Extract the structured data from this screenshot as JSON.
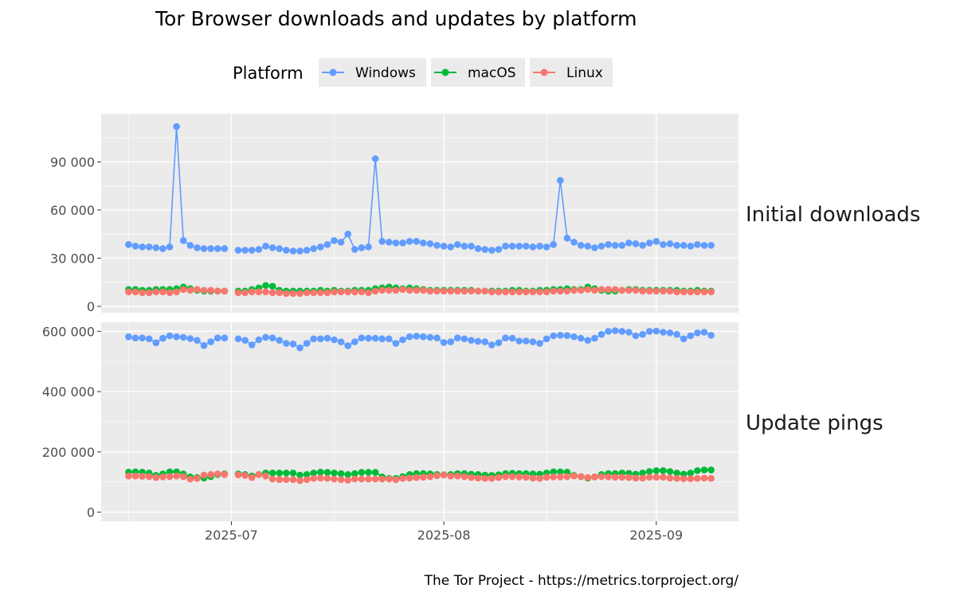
{
  "title": "Tor Browser downloads and updates by platform",
  "legend": {
    "title": "Platform",
    "position": "top",
    "entries": [
      {
        "name": "Windows",
        "color": "#619CFF"
      },
      {
        "name": "macOS",
        "color": "#00BA38"
      },
      {
        "name": "Linux",
        "color": "#F8766D"
      }
    ]
  },
  "caption": "The Tor Project - https://metrics.torproject.org/",
  "x_axis": {
    "type": "date",
    "range": [
      "2025-06-12",
      "2025-09-13"
    ],
    "ticks": [
      {
        "value": "2025-07-01",
        "label": "2025-07"
      },
      {
        "value": "2025-08-01",
        "label": "2025-08"
      },
      {
        "value": "2025-09-01",
        "label": "2025-09"
      }
    ]
  },
  "chart_data": [
    {
      "type": "line",
      "panel": "Initial downloads",
      "ylim": [
        -4000,
        120000
      ],
      "y_ticks": [
        {
          "value": 0,
          "label": "0"
        },
        {
          "value": 30000,
          "label": "30 000"
        },
        {
          "value": 60000,
          "label": "60 000"
        },
        {
          "value": 90000,
          "label": "90 000"
        }
      ],
      "grid": true,
      "x_start": "2025-06-16",
      "gap_after_date": "2025-07-01",
      "series": [
        {
          "name": "Windows",
          "values": [
            38500,
            37500,
            37000,
            37000,
            36500,
            36000,
            37000,
            112000,
            41000,
            38000,
            36500,
            36000,
            36000,
            36000,
            36000,
            null,
            35000,
            35000,
            35000,
            35500,
            37500,
            36500,
            36000,
            35000,
            34500,
            34500,
            35000,
            36000,
            37000,
            38500,
            41000,
            40000,
            45000,
            35500,
            36500,
            37000,
            92000,
            40500,
            40000,
            39500,
            39500,
            40500,
            40500,
            39500,
            39000,
            38000,
            37500,
            37000,
            38500,
            37500,
            37500,
            36000,
            35500,
            35000,
            35500,
            37500,
            37500,
            37500,
            37500,
            37000,
            37500,
            37000,
            38500,
            78500,
            42500,
            40000,
            38000,
            37500,
            36500,
            37500,
            38500,
            38000,
            38000,
            39500,
            39000,
            38000,
            39500,
            40500,
            38500,
            39000,
            38000,
            38000,
            37500,
            38500,
            38000,
            38000
          ],
          "note": "values read approximately from chart"
        },
        {
          "name": "macOS",
          "values": [
            10500,
            10500,
            10000,
            10000,
            10500,
            10500,
            10500,
            11000,
            12000,
            11000,
            10000,
            9500,
            9500,
            9500,
            9500,
            null,
            9500,
            9500,
            10500,
            11500,
            13000,
            12500,
            10000,
            9500,
            9500,
            9500,
            9500,
            9500,
            10000,
            9500,
            10000,
            9500,
            9500,
            10000,
            10000,
            10000,
            11000,
            11500,
            12000,
            11500,
            11000,
            11500,
            11000,
            10500,
            10000,
            10000,
            10000,
            10000,
            10000,
            10000,
            10000,
            9500,
            9500,
            9500,
            9500,
            9500,
            10000,
            10000,
            9500,
            9500,
            10000,
            10000,
            10500,
            10500,
            11000,
            10500,
            10500,
            12000,
            11000,
            10000,
            9500,
            9500,
            10000,
            10500,
            10500,
            10000,
            10000,
            10000,
            10000,
            10000,
            10000,
            9500,
            9500,
            10000,
            9500,
            9500
          ]
        },
        {
          "name": "Linux",
          "values": [
            9000,
            9000,
            8500,
            8500,
            9000,
            9000,
            8500,
            9000,
            10500,
            10000,
            10500,
            10000,
            10000,
            9500,
            9500,
            null,
            8500,
            8500,
            9000,
            9000,
            9000,
            8500,
            8500,
            8000,
            8000,
            8000,
            8500,
            8500,
            8500,
            8500,
            9000,
            9000,
            9000,
            9000,
            9000,
            8500,
            9500,
            10000,
            10000,
            10000,
            10500,
            10000,
            10000,
            10000,
            9500,
            9500,
            9500,
            9500,
            9500,
            9500,
            9500,
            9500,
            9500,
            9000,
            9000,
            9000,
            9000,
            9000,
            9000,
            9000,
            9000,
            9000,
            9500,
            9500,
            9500,
            10000,
            10000,
            10500,
            10000,
            10500,
            10500,
            10500,
            10000,
            10000,
            10000,
            9500,
            9500,
            9500,
            9500,
            9500,
            9000,
            9000,
            9000,
            9000,
            9000,
            9000
          ]
        }
      ]
    },
    {
      "type": "line",
      "panel": "Update pings",
      "ylim": [
        -30000,
        630000
      ],
      "y_ticks": [
        {
          "value": 0,
          "label": "0"
        },
        {
          "value": 200000,
          "label": "200 000"
        },
        {
          "value": 400000,
          "label": "400 000"
        },
        {
          "value": 600000,
          "label": "600 000"
        }
      ],
      "grid": true,
      "x_start": "2025-06-16",
      "gap_after_date": "2025-07-01",
      "series": [
        {
          "name": "Windows",
          "values": [
            582000,
            578000,
            578000,
            575000,
            562000,
            577000,
            585000,
            582000,
            580000,
            576000,
            570000,
            553000,
            565000,
            578000,
            578000,
            null,
            575000,
            570000,
            555000,
            572000,
            580000,
            578000,
            570000,
            560000,
            558000,
            545000,
            560000,
            575000,
            575000,
            577000,
            572000,
            565000,
            552000,
            565000,
            578000,
            577000,
            577000,
            575000,
            575000,
            560000,
            572000,
            582000,
            584000,
            582000,
            580000,
            578000,
            563000,
            565000,
            578000,
            575000,
            570000,
            567000,
            565000,
            555000,
            562000,
            578000,
            577000,
            568000,
            568000,
            565000,
            560000,
            575000,
            585000,
            587000,
            586000,
            582000,
            577000,
            570000,
            577000,
            590000,
            600000,
            602000,
            600000,
            597000,
            585000,
            590000,
            600000,
            601000,
            597000,
            595000,
            590000,
            575000,
            585000,
            595000,
            597000,
            587000
          ]
        },
        {
          "name": "macOS",
          "values": [
            133000,
            134000,
            133000,
            130000,
            122000,
            127000,
            134000,
            134000,
            127000,
            117000,
            115000,
            113000,
            118000,
            125000,
            127000,
            null,
            127000,
            125000,
            120000,
            125000,
            130000,
            130000,
            130000,
            130000,
            130000,
            123000,
            125000,
            130000,
            133000,
            132000,
            130000,
            128000,
            125000,
            128000,
            132000,
            132000,
            132000,
            117000,
            112000,
            112000,
            118000,
            125000,
            128000,
            128000,
            127000,
            125000,
            124000,
            125000,
            128000,
            128000,
            126000,
            125000,
            123000,
            122000,
            124000,
            128000,
            129000,
            128000,
            128000,
            127000,
            126000,
            130000,
            134000,
            134000,
            133000,
            122000,
            118000,
            113000,
            117000,
            125000,
            128000,
            128000,
            130000,
            129000,
            126000,
            130000,
            135000,
            138000,
            138000,
            135000,
            130000,
            126000,
            130000,
            138000,
            140000,
            140000
          ]
        },
        {
          "name": "Linux",
          "values": [
            120000,
            120000,
            119000,
            118000,
            115000,
            117000,
            118000,
            120000,
            118000,
            110000,
            112000,
            123000,
            125000,
            127000,
            125000,
            null,
            124000,
            122000,
            115000,
            125000,
            120000,
            110000,
            108000,
            108000,
            108000,
            105000,
            108000,
            112000,
            113000,
            112000,
            110000,
            108000,
            106000,
            110000,
            110000,
            110000,
            110000,
            110000,
            110000,
            108000,
            112000,
            113000,
            115000,
            116000,
            118000,
            121000,
            123000,
            120000,
            120000,
            118000,
            115000,
            113000,
            112000,
            112000,
            115000,
            118000,
            118000,
            117000,
            116000,
            113000,
            112000,
            116000,
            117000,
            117000,
            118000,
            120000,
            118000,
            115000,
            117000,
            118000,
            117000,
            116000,
            116000,
            115000,
            113000,
            113000,
            116000,
            116000,
            116000,
            113000,
            112000,
            111000,
            111000,
            112000,
            113000,
            112000
          ]
        }
      ]
    }
  ]
}
